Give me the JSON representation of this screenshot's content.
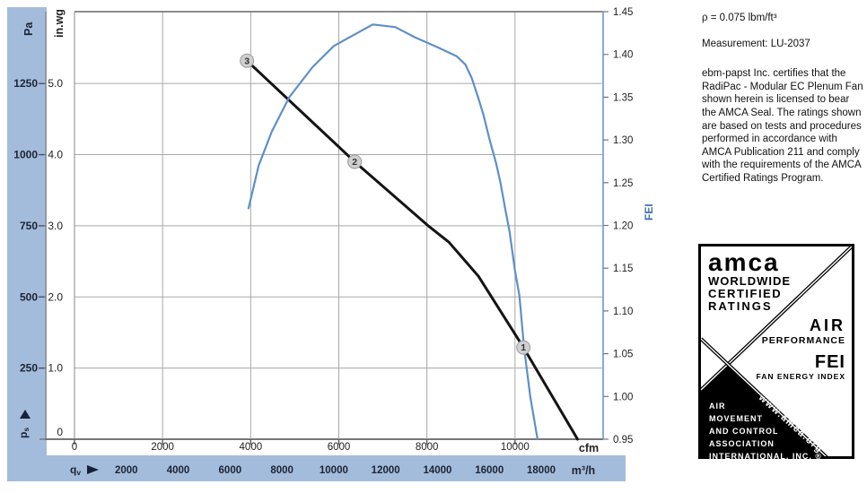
{
  "side_panel": {
    "density": "ρ = 0.075 lbm/ft³",
    "measurement": "Measurement: LU-2037",
    "certification": "ebm-papst Inc. certifies that the RadiPac - Modular EC Plenum Fan shown herein is licensed to bear the AMCA Seal. The ratings shown are based on tests and procedures performed in accordance with AMCA Publication 211 and comply with the requirements of the AMCA Certified Ratings Program."
  },
  "amca_seal": {
    "logo": "amca",
    "line1": "WORLDWIDE",
    "line2": "CERTIFIED",
    "line3": "RATINGS",
    "air": "AIR",
    "performance": "PERFORMANCE",
    "fei": "FEI",
    "fan_energy_index": "FAN ENERGY INDEX",
    "assoc_line1": "AIR",
    "assoc_line2": "MOVEMENT",
    "assoc_line3": "AND CONTROL",
    "assoc_line4": "ASSOCIATION",
    "assoc_line5": "INTERNATIONAL, INC. ®",
    "url": "www.amca.org"
  },
  "chart_data": {
    "type": "line",
    "title": "",
    "grid": true,
    "x_axis": {
      "flow_symbol": "q",
      "flow_symbol_sub": "v",
      "unit_cfm": "cfm",
      "unit_m3h": "m³/h",
      "cfm_ticks": [
        0,
        2000,
        4000,
        6000,
        8000,
        10000
      ],
      "m3h_ticks": [
        2000,
        4000,
        6000,
        8000,
        10000,
        12000,
        14000,
        16000,
        18000
      ],
      "cfm_max": 12000
    },
    "y_left": {
      "unit_pa": "Pa",
      "pressure_symbol": "p",
      "pressure_symbol_sub": "s",
      "pa_ticks": [
        1250,
        1000,
        750,
        500,
        250
      ],
      "unit_inwg": "in.wg",
      "inwg_ticks": [
        "5.0",
        "4.0",
        "3.0",
        "2.0",
        "1.0",
        "0"
      ],
      "inwg_max": 6.01
    },
    "y_right": {
      "unit": "FEI",
      "ticks": [
        "1.45",
        "1.40",
        "1.35",
        "1.30",
        "1.25",
        "1.20",
        "1.15",
        "1.10",
        "1.05",
        "1.00",
        "0.95"
      ],
      "min": 0.95,
      "max": 1.45
    },
    "series": [
      {
        "name": "fan-pressure-curve",
        "color": "#141414",
        "width": 3,
        "y_scale": "inwg",
        "points": [
          [
            3915,
            5.32
          ],
          [
            6360,
            3.9
          ],
          [
            8030,
            3.0
          ],
          [
            8500,
            2.77
          ],
          [
            9170,
            2.29
          ],
          [
            10190,
            1.29
          ],
          [
            11420,
            0
          ]
        ]
      },
      {
        "name": "fei-curve",
        "color": "#5f8fc7",
        "width": 2.2,
        "y_scale": "fei",
        "points": [
          [
            3950,
            1.22
          ],
          [
            4180,
            1.27
          ],
          [
            4480,
            1.31
          ],
          [
            4875,
            1.35
          ],
          [
            5400,
            1.385
          ],
          [
            5890,
            1.41
          ],
          [
            6420,
            1.425
          ],
          [
            6770,
            1.435
          ],
          [
            7280,
            1.432
          ],
          [
            7730,
            1.42
          ],
          [
            8260,
            1.408
          ],
          [
            8670,
            1.398
          ],
          [
            8875,
            1.388
          ],
          [
            9020,
            1.372
          ],
          [
            9160,
            1.35
          ],
          [
            9280,
            1.33
          ],
          [
            9425,
            1.3
          ],
          [
            9570,
            1.273
          ],
          [
            9670,
            1.25
          ],
          [
            9775,
            1.22
          ],
          [
            9875,
            1.193
          ],
          [
            10000,
            1.147
          ],
          [
            10100,
            1.118
          ],
          [
            10205,
            1.057
          ],
          [
            10345,
            1.0
          ],
          [
            10510,
            0.95
          ]
        ]
      }
    ],
    "markers": [
      {
        "label": "3",
        "cfm": 3915,
        "inwg": 5.32
      },
      {
        "label": "2",
        "cfm": 6360,
        "inwg": 3.9
      },
      {
        "label": "1",
        "cfm": 10190,
        "inwg": 1.29
      }
    ],
    "colors": {
      "band": "#a3bcdc",
      "grid": "#a8a8a8",
      "axis_dark": "#555555",
      "fei_axis": "#7ba3d2",
      "fei_label": "#3f6fae",
      "marker_fill": "#cfcfcf",
      "marker_stroke": "#9a9a9a",
      "tick_text": "#1c2333"
    }
  }
}
